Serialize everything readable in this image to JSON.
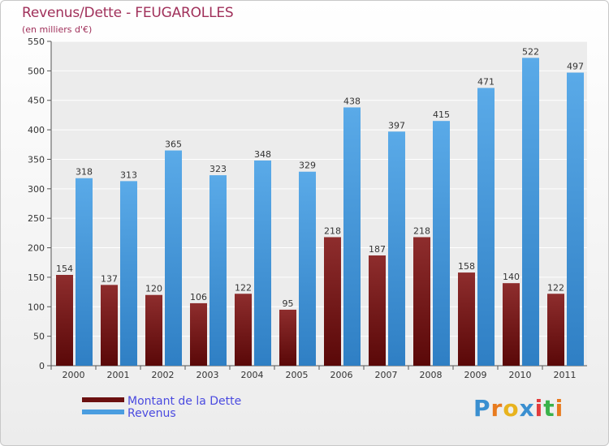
{
  "chart_data": {
    "type": "bar",
    "title": "Revenus/Dette - FEUGAROLLES",
    "subtitle": "(en milliers d'€)",
    "categories": [
      "2000",
      "2001",
      "2002",
      "2003",
      "2004",
      "2005",
      "2006",
      "2007",
      "2008",
      "2009",
      "2010",
      "2011"
    ],
    "series": [
      {
        "name": "Montant de la Dette",
        "color": "#6b1010",
        "values": [
          154,
          137,
          120,
          106,
          122,
          95,
          218,
          187,
          218,
          158,
          140,
          122
        ]
      },
      {
        "name": "Revenus",
        "color": "#4a9de0",
        "values": [
          318,
          313,
          365,
          323,
          348,
          329,
          438,
          397,
          415,
          471,
          522,
          497
        ]
      }
    ],
    "ylim": [
      0,
      550
    ],
    "yticks": [
      0,
      50,
      100,
      150,
      200,
      250,
      300,
      350,
      400,
      450,
      500,
      550
    ],
    "grid": true,
    "legend_position": "bottom-left"
  },
  "logo": {
    "text": [
      "P",
      "r",
      "o",
      "x",
      "i",
      "t",
      "i"
    ]
  }
}
